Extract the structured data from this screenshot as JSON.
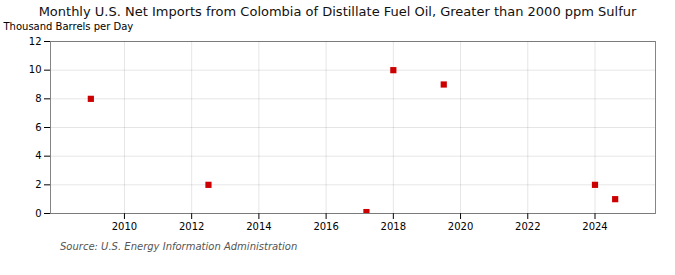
{
  "chart_data": {
    "type": "scatter",
    "title": "Monthly U.S. Net Imports from Colombia of Distillate Fuel Oil, Greater than 2000 ppm Sulfur",
    "ylabel": "Thousand Barrels per Day",
    "source": "Source: U.S. Energy Information Administration",
    "x": [
      2009.0,
      2012.5,
      2017.2,
      2018.0,
      2019.5,
      2024.0,
      2024.6
    ],
    "values": [
      8,
      2,
      0.1,
      10,
      9,
      2,
      1
    ],
    "color": "#cc0000",
    "marker": "square",
    "xlim": [
      2007.8,
      2025.8
    ],
    "ylim": [
      0,
      12
    ],
    "xticks": [
      2010,
      2012,
      2014,
      2016,
      2018,
      2020,
      2022,
      2024
    ],
    "yticks": [
      0,
      2,
      4,
      6,
      8,
      10,
      12
    ],
    "grid": true
  }
}
